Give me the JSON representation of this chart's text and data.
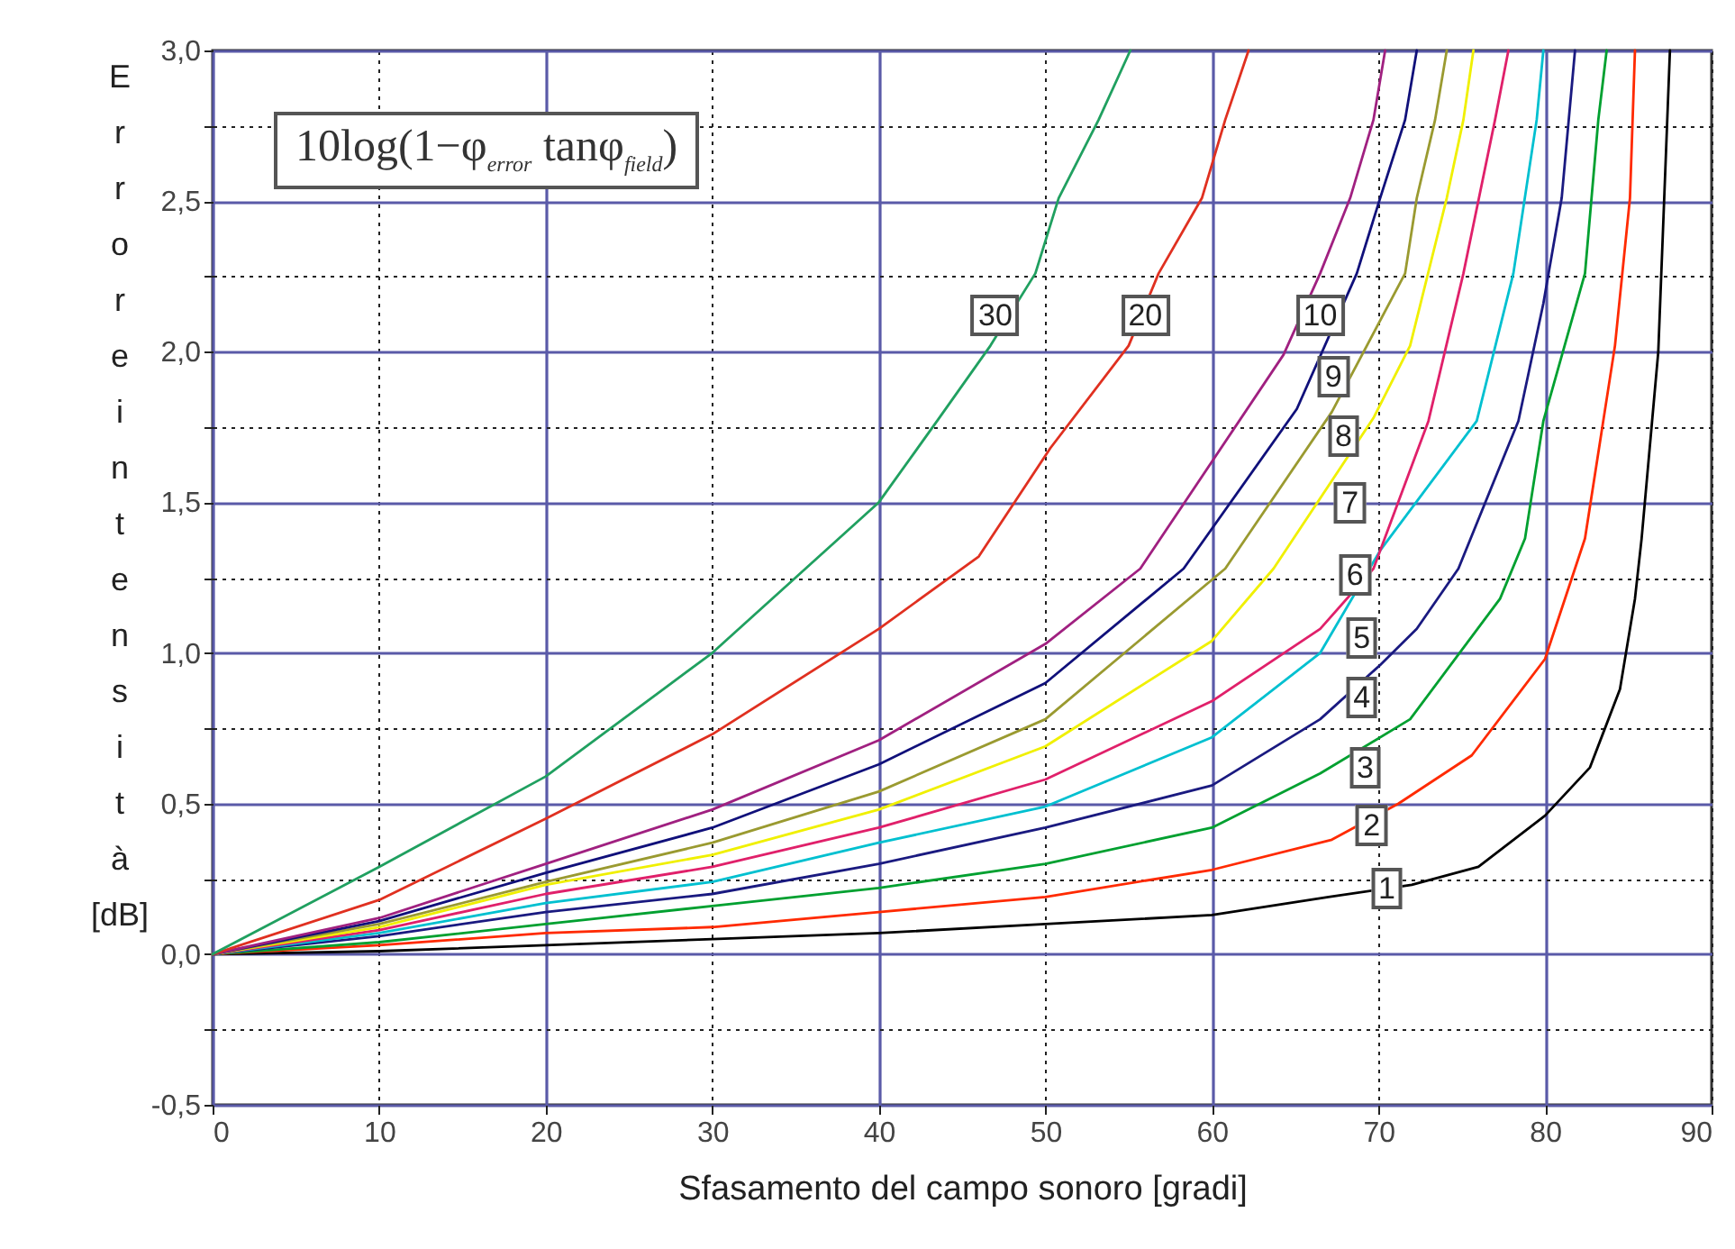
{
  "chart_data": {
    "type": "line",
    "xlabel": "Sfasamento del campo sonoro [gradi]",
    "ylabel": "Errore intensità [dB]",
    "annotations": [
      "10log(1−φ$_{error}$ tanφ$_{field}$)"
    ],
    "xlim": [
      0,
      90
    ],
    "xticks": [
      0,
      10,
      20,
      30,
      40,
      50,
      60,
      70,
      80,
      90
    ],
    "ylim": [
      -0.5,
      3.0
    ],
    "yticks": [
      {
        "value": -0.5,
        "label": "-0,5"
      },
      {
        "value": -0.25,
        "label": null
      },
      {
        "value": 0,
        "label": "0,0"
      },
      {
        "value": 0.25,
        "label": null
      },
      {
        "value": 0.5,
        "label": "0,5"
      },
      {
        "value": 0.75,
        "label": null
      },
      {
        "value": 1.0,
        "label": "1,0"
      },
      {
        "value": 1.25,
        "label": null
      },
      {
        "value": 1.5,
        "label": "1,5"
      },
      {
        "value": 1.75,
        "label": null
      },
      {
        "value": 2.0,
        "label": "2,0"
      },
      {
        "value": 2.25,
        "label": null
      },
      {
        "value": 2.5,
        "label": "2,5"
      },
      {
        "value": 2.75,
        "label": null
      },
      {
        "value": 3.0,
        "label": "3,0"
      }
    ],
    "grid": true,
    "series": [
      {
        "name": "1",
        "color": "#000000",
        "x": [
          0,
          10,
          20,
          30,
          40,
          50,
          60,
          67,
          72,
          76,
          80,
          82.7,
          84.5,
          85.4,
          85.8,
          86.8,
          87.5
        ],
        "values": [
          0,
          0.01,
          0.03,
          0.05,
          0.07,
          0.1,
          0.13,
          0.19,
          0.23,
          0.29,
          0.46,
          0.62,
          0.88,
          1.18,
          1.38,
          2.0,
          3.0
        ]
      },
      {
        "name": "2",
        "color": "#ff2a00",
        "x": [
          0,
          10,
          20,
          30,
          40,
          50,
          60,
          67.2,
          71.2,
          75.6,
          80,
          82.4,
          84.2,
          85.1,
          85.4
        ],
        "values": [
          0,
          0.03,
          0.07,
          0.09,
          0.14,
          0.19,
          0.28,
          0.38,
          0.5,
          0.66,
          0.98,
          1.38,
          2.02,
          2.51,
          3.0
        ]
      },
      {
        "name": "3",
        "color": "#00a030",
        "x": [
          0,
          10,
          20,
          30,
          40,
          50,
          60,
          66.5,
          71.9,
          77.3,
          78.8,
          79.9,
          82.4,
          83.2,
          83.7
        ],
        "values": [
          0,
          0.04,
          0.1,
          0.16,
          0.22,
          0.3,
          0.42,
          0.6,
          0.78,
          1.18,
          1.38,
          1.77,
          2.26,
          2.77,
          3.0
        ]
      },
      {
        "name": "4",
        "color": "#1a1a80",
        "x": [
          0,
          10,
          20,
          30,
          40,
          50,
          60,
          66.5,
          70.1,
          72.3,
          74.8,
          78.4,
          79.9,
          81,
          81.8
        ],
        "values": [
          0,
          0.06,
          0.14,
          0.2,
          0.3,
          0.42,
          0.56,
          0.78,
          0.96,
          1.08,
          1.28,
          1.77,
          2.16,
          2.51,
          3.0
        ]
      },
      {
        "name": "5",
        "color": "#00c0d0",
        "x": [
          0,
          10,
          20,
          30,
          40,
          50,
          60,
          66.5,
          70.1,
          75.9,
          78.1,
          79.5,
          79.9
        ],
        "values": [
          0,
          0.07,
          0.17,
          0.24,
          0.37,
          0.49,
          0.72,
          1.0,
          1.34,
          1.77,
          2.26,
          2.77,
          3.0
        ]
      },
      {
        "name": "6",
        "color": "#e0206a",
        "x": [
          0,
          10,
          20,
          30,
          40,
          50,
          60,
          66.5,
          69.7,
          73,
          75.1,
          77,
          77.8
        ],
        "values": [
          0,
          0.08,
          0.2,
          0.29,
          0.42,
          0.58,
          0.84,
          1.08,
          1.28,
          1.77,
          2.26,
          2.77,
          3.0
        ]
      },
      {
        "name": "7",
        "color": "#f0f000",
        "x": [
          0,
          10,
          20,
          30,
          40,
          50,
          60,
          63.7,
          69.7,
          71.9,
          74.1,
          75.1,
          75.7
        ],
        "values": [
          0,
          0.09,
          0.23,
          0.33,
          0.48,
          0.69,
          1.04,
          1.28,
          1.78,
          2.02,
          2.51,
          2.77,
          3.0
        ]
      },
      {
        "name": "8",
        "color": "#9a9a30",
        "x": [
          0,
          10,
          20,
          30,
          40,
          50,
          60.8,
          67.2,
          71.6,
          72.3,
          73.4,
          74.1
        ],
        "values": [
          0,
          0.1,
          0.24,
          0.37,
          0.54,
          0.78,
          1.28,
          1.8,
          2.26,
          2.51,
          2.77,
          3.0
        ]
      },
      {
        "name": "9",
        "color": "#10107a",
        "x": [
          0,
          10,
          20,
          30,
          40,
          50,
          58.3,
          65.1,
          68.7,
          70.1,
          71.6,
          72.3
        ],
        "values": [
          0,
          0.11,
          0.27,
          0.42,
          0.63,
          0.9,
          1.28,
          1.81,
          2.26,
          2.51,
          2.77,
          3.0
        ]
      },
      {
        "name": "10",
        "color": "#a02080",
        "x": [
          0,
          10,
          20,
          30,
          40,
          50,
          55.7,
          64.3,
          66.5,
          68.3,
          69.7,
          70.4
        ],
        "values": [
          0,
          0.12,
          0.3,
          0.48,
          0.71,
          1.03,
          1.28,
          1.99,
          2.26,
          2.51,
          2.77,
          3.0
        ]
      },
      {
        "name": "20",
        "color": "#e03020",
        "x": [
          0,
          10,
          20,
          30,
          40,
          46,
          50.3,
          55,
          56.8,
          59.4,
          60.8,
          62.2
        ],
        "values": [
          0,
          0.18,
          0.45,
          0.73,
          1.08,
          1.32,
          1.68,
          2.02,
          2.26,
          2.51,
          2.77,
          3.0
        ]
      },
      {
        "name": "30",
        "color": "#20a060",
        "x": [
          0,
          10,
          20,
          30,
          40,
          43.5,
          46.7,
          49.4,
          50.8,
          53.2,
          55.1
        ],
        "values": [
          0,
          0.29,
          0.59,
          1.0,
          1.5,
          1.77,
          2.02,
          2.26,
          2.51,
          2.77,
          3.0
        ]
      }
    ]
  }
}
